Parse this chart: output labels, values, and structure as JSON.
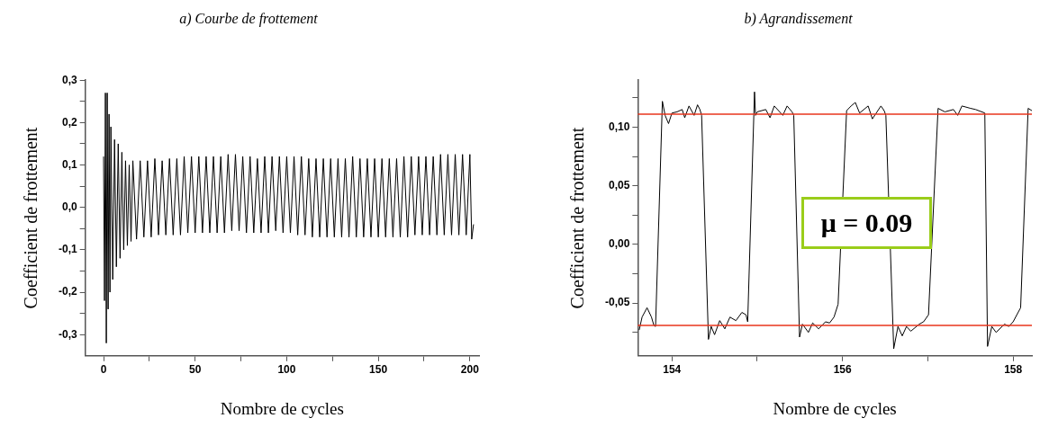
{
  "chart_data": [
    {
      "type": "line",
      "title": "a) Courbe de frottement",
      "xlabel": "Nombre de cycles",
      "ylabel": "Coefficient de frottement",
      "xlim": [
        -10,
        205
      ],
      "ylim": [
        -0.35,
        0.3
      ],
      "xticks": [
        0,
        {
          "value": 25,
          "label": null
        },
        50,
        {
          "value": 75,
          "label": null
        },
        100,
        {
          "value": 125,
          "label": null
        },
        150,
        {
          "value": 175,
          "label": null
        },
        200
      ],
      "yticks": [
        {
          "value": -0.3,
          "label": "-0,3"
        },
        {
          "value": -0.25,
          "label": null
        },
        {
          "value": -0.2,
          "label": "-0,2"
        },
        {
          "value": -0.15,
          "label": null
        },
        {
          "value": -0.1,
          "label": "-0,1"
        },
        {
          "value": -0.05,
          "label": null
        },
        {
          "value": 0,
          "label": "0,0"
        },
        {
          "value": 0.05,
          "label": null
        },
        {
          "value": 0.1,
          "label": "0,1"
        },
        {
          "value": 0.15,
          "label": null
        },
        {
          "value": 0.2,
          "label": "0,2"
        },
        {
          "value": 0.25,
          "label": null
        },
        {
          "value": 0.3,
          "label": "0,3"
        }
      ],
      "series": [
        {
          "color": "#000000",
          "x": [
            0,
            0.5,
            1,
            1.5,
            2,
            2.5,
            3,
            3.5,
            4,
            5,
            6,
            7,
            8,
            9,
            10,
            11,
            12,
            13,
            14,
            15,
            16,
            18,
            20,
            22,
            24,
            26,
            28,
            30,
            32,
            34,
            36,
            38,
            40,
            42,
            44,
            46,
            48,
            50,
            52,
            54,
            56,
            58,
            60,
            62,
            64,
            66,
            68,
            70,
            72,
            74,
            76,
            78,
            80,
            82,
            84,
            86,
            88,
            90,
            92,
            94,
            96,
            98,
            100,
            102,
            104,
            106,
            108,
            110,
            112,
            114,
            116,
            118,
            120,
            122,
            124,
            126,
            128,
            130,
            132,
            134,
            136,
            138,
            140,
            142,
            144,
            146,
            148,
            150,
            152,
            154,
            156,
            158,
            160,
            162,
            164,
            166,
            168,
            170,
            172,
            174,
            176,
            178,
            180,
            182,
            184,
            186,
            188,
            190,
            192,
            194,
            196,
            198,
            200,
            201,
            202
          ],
          "values": [
            0.12,
            -0.22,
            0.27,
            -0.32,
            0.27,
            -0.24,
            0.22,
            -0.2,
            0.19,
            -0.17,
            0.16,
            -0.14,
            0.15,
            -0.12,
            0.13,
            -0.1,
            0.11,
            -0.09,
            0.1,
            -0.08,
            0.11,
            -0.075,
            0.11,
            -0.07,
            0.11,
            -0.07,
            0.115,
            -0.065,
            0.11,
            -0.065,
            0.115,
            -0.065,
            0.115,
            -0.065,
            0.12,
            -0.06,
            0.12,
            -0.06,
            0.12,
            -0.06,
            0.12,
            -0.06,
            0.12,
            -0.06,
            0.12,
            -0.06,
            0.125,
            -0.055,
            0.125,
            -0.055,
            0.12,
            -0.06,
            0.12,
            -0.06,
            0.115,
            -0.06,
            0.12,
            -0.06,
            0.12,
            -0.055,
            0.12,
            -0.06,
            0.12,
            -0.06,
            0.12,
            -0.065,
            0.12,
            -0.065,
            0.115,
            -0.07,
            0.115,
            -0.07,
            0.115,
            -0.07,
            0.115,
            -0.07,
            0.115,
            -0.07,
            0.115,
            -0.07,
            0.12,
            -0.07,
            0.115,
            -0.07,
            0.115,
            -0.07,
            0.115,
            -0.07,
            0.115,
            -0.07,
            0.115,
            -0.07,
            0.115,
            -0.07,
            0.12,
            -0.07,
            0.12,
            -0.065,
            0.12,
            -0.065,
            0.12,
            -0.065,
            0.12,
            -0.065,
            0.125,
            -0.065,
            0.125,
            -0.065,
            0.125,
            -0.065,
            0.125,
            -0.065,
            0.125,
            -0.075,
            -0.04
          ]
        }
      ],
      "grid": false,
      "legend": false,
      "marker": "none",
      "line_style": "solid"
    },
    {
      "type": "line",
      "title": "b) Agrandissement",
      "xlabel": "Nombre de cycles",
      "ylabel": "Coefficient de frottement",
      "xlim": [
        153.6,
        158.22
      ],
      "ylim": [
        -0.095,
        0.14
      ],
      "xticks": [
        154,
        {
          "value": 155,
          "label": null
        },
        156,
        {
          "value": 157,
          "label": null
        },
        158
      ],
      "yticks": [
        {
          "value": -0.075,
          "label": null
        },
        {
          "value": -0.05,
          "label": "-0,05"
        },
        {
          "value": -0.025,
          "label": null
        },
        {
          "value": 0,
          "label": "0,00"
        },
        {
          "value": 0.025,
          "label": null
        },
        {
          "value": 0.05,
          "label": "0,05"
        },
        {
          "value": 0.075,
          "label": null
        },
        {
          "value": 0.1,
          "label": "0,10"
        },
        {
          "value": 0.125,
          "label": null
        }
      ],
      "series": [
        {
          "color": "#000000",
          "x": [
            153.616,
            153.65,
            153.708,
            153.76,
            153.788,
            153.808,
            153.888,
            153.92,
            153.96,
            154.0,
            154.06,
            154.12,
            154.15,
            154.2,
            154.26,
            154.3,
            154.328,
            154.348,
            154.428,
            154.46,
            154.5,
            154.56,
            154.62,
            154.68,
            154.75,
            154.82,
            154.868,
            154.888,
            154.968,
            154.98,
            155.0,
            155.1,
            155.15,
            155.2,
            155.3,
            155.35,
            155.408,
            155.428,
            155.496,
            155.53,
            155.6,
            155.65,
            155.72,
            155.8,
            155.848,
            155.9,
            155.948,
            156.048,
            156.1,
            156.15,
            156.2,
            156.3,
            156.35,
            156.45,
            156.488,
            156.508,
            156.6,
            156.65,
            156.7,
            156.75,
            156.8,
            156.9,
            156.95,
            157.008,
            157.12,
            157.2,
            157.3,
            157.35,
            157.4,
            157.5,
            157.56,
            157.668,
            157.7,
            157.75,
            157.8,
            157.9,
            157.95,
            158.0,
            158.088,
            158.176,
            158.22
          ],
          "values": [
            -0.073,
            -0.062,
            -0.054,
            -0.062,
            -0.069,
            -0.07,
            0.122,
            0.11,
            0.103,
            0.112,
            0.113,
            0.115,
            0.108,
            0.118,
            0.11,
            0.119,
            0.115,
            0.11,
            -0.081,
            -0.07,
            -0.077,
            -0.065,
            -0.072,
            -0.062,
            -0.065,
            -0.058,
            -0.06,
            -0.066,
            0.13,
            0.11,
            0.113,
            0.115,
            0.108,
            0.118,
            0.11,
            0.118,
            0.113,
            0.11,
            -0.079,
            -0.068,
            -0.075,
            -0.067,
            -0.072,
            -0.066,
            -0.067,
            -0.062,
            -0.051,
            0.114,
            0.118,
            0.121,
            0.112,
            0.118,
            0.107,
            0.118,
            0.114,
            0.11,
            -0.089,
            -0.07,
            -0.078,
            -0.07,
            -0.074,
            -0.068,
            -0.066,
            -0.06,
            0.116,
            0.113,
            0.115,
            0.11,
            0.118,
            0.116,
            0.115,
            0.112,
            -0.087,
            -0.07,
            -0.075,
            -0.068,
            -0.07,
            -0.066,
            -0.054,
            0.116,
            0.114
          ]
        }
      ],
      "ref_lines": [
        {
          "axis": "y",
          "value": 0.111,
          "color": "#e8341c"
        },
        {
          "axis": "y",
          "value": -0.069,
          "color": "#e8341c"
        }
      ],
      "annotations": [
        "μ = 0.09"
      ],
      "grid": false,
      "legend": false,
      "marker": "none",
      "line_style": "solid"
    }
  ]
}
